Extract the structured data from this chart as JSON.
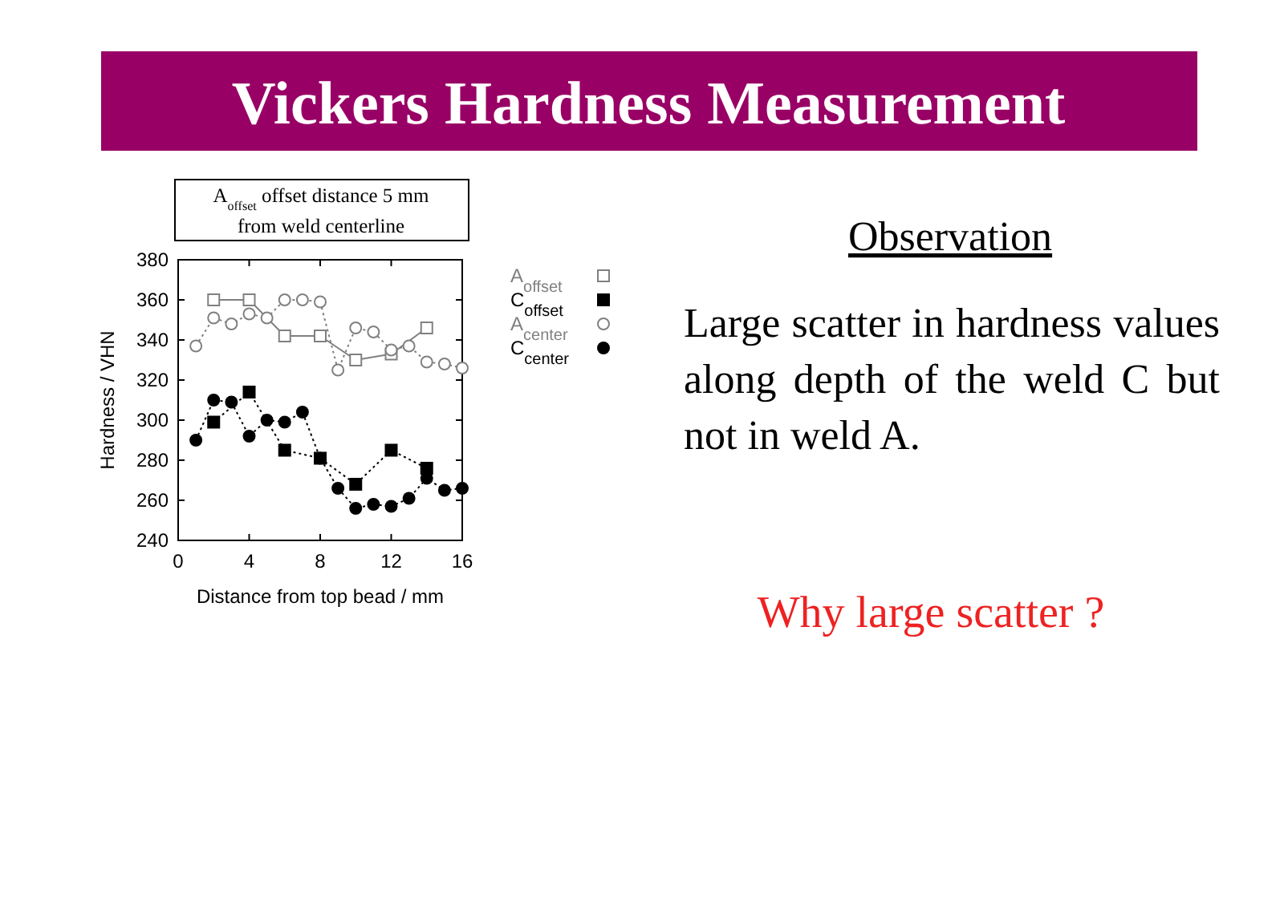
{
  "chart_data": {
    "type": "line",
    "title": "Vickers Hardness Measurement",
    "xlabel": "Distance from top bead / mm",
    "ylabel": "Hardness / VHN",
    "annotations": [
      "A$_{offset}$ offset distance 5 mm from weld centerline",
      "Observation",
      "Large scatter in hardness values along depth of the weld C but not in weld A.",
      "Why large scatter ?"
    ],
    "xlim": [
      0,
      16
    ],
    "xticks": [
      0,
      4,
      8,
      12,
      16
    ],
    "ylim": [
      240,
      380
    ],
    "yticks": [
      240,
      260,
      280,
      300,
      320,
      340,
      360,
      380
    ],
    "grid": false,
    "legend": "right",
    "series": [
      {
        "name": "A$_{offset}$",
        "color": "#808080",
        "marker": "square",
        "line_style": "solid",
        "x": [
          2,
          4,
          6,
          8,
          10,
          12,
          14
        ],
        "values": [
          360,
          360,
          342,
          342,
          330,
          333,
          346
        ]
      },
      {
        "name": "C$_{offset}$",
        "color": "#000000",
        "marker": "square",
        "line_style": "dotted",
        "x": [
          2,
          4,
          6,
          8,
          10,
          12,
          14
        ],
        "values": [
          299,
          314,
          285,
          281,
          268,
          285,
          276
        ]
      },
      {
        "name": "A$_{center}$",
        "color": "#808080",
        "marker": "circle",
        "line_style": "dotted",
        "x": [
          1,
          2,
          3,
          4,
          5,
          6,
          7,
          8,
          9,
          10,
          11,
          12,
          13,
          14,
          15,
          16
        ],
        "values": [
          337,
          351,
          348,
          353,
          351,
          360,
          360,
          359,
          325,
          346,
          344,
          335,
          337,
          329,
          328,
          326
        ]
      },
      {
        "name": "C$_{center}$",
        "color": "#000000",
        "marker": "circle",
        "line_style": "dotted",
        "x": [
          1,
          2,
          3,
          4,
          5,
          6,
          7,
          8,
          9,
          10,
          11,
          12,
          13,
          14,
          15,
          16
        ],
        "values": [
          290,
          310,
          309,
          292,
          300,
          299,
          304,
          281,
          266,
          256,
          258,
          257,
          261,
          271,
          265,
          266
        ]
      }
    ]
  }
}
